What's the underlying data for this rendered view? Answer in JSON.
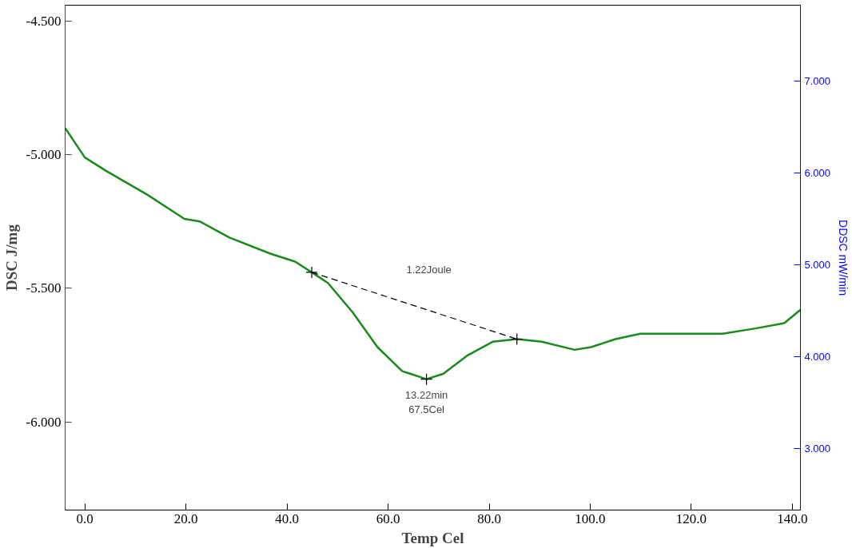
{
  "chart_data": {
    "type": "line",
    "xlabel": "Temp Cel",
    "ylabel": "DSC J/mg",
    "y2label": "DDSC mW/min",
    "xlim": [
      -3.9,
      141.6
    ],
    "ylim": [
      -6.33,
      -4.44
    ],
    "y2lim": [
      2.33,
      7.83
    ],
    "xticks": [
      {
        "value": 0,
        "label": "0.0"
      },
      {
        "value": 20,
        "label": "20.0"
      },
      {
        "value": 40,
        "label": "40.0"
      },
      {
        "value": 60,
        "label": "60.0"
      },
      {
        "value": 80,
        "label": "80.0"
      },
      {
        "value": 100,
        "label": "100.0"
      },
      {
        "value": 120,
        "label": "120.0"
      },
      {
        "value": 140,
        "label": "140.0"
      }
    ],
    "yticks": [
      {
        "value": -4.5,
        "label": "-4.500"
      },
      {
        "value": -5.0,
        "label": "-5.000"
      },
      {
        "value": -5.5,
        "label": "-5.500"
      },
      {
        "value": -6.0,
        "label": "-6.000"
      }
    ],
    "y2ticks": [
      {
        "value": 3,
        "label": "3.000"
      },
      {
        "value": 4,
        "label": "4.000"
      },
      {
        "value": 5,
        "label": "5.000"
      },
      {
        "value": 6,
        "label": "6.000"
      },
      {
        "value": 7,
        "label": "7.000"
      }
    ],
    "grid": false,
    "series": [
      {
        "color": "#1a8a1a",
        "marker": "none",
        "line_style": "solid",
        "x": [
          -3.9,
          0,
          4.2,
          12.4,
          19.7,
          22.8,
          28.6,
          36.7,
          41.6,
          44.9,
          48.1,
          53.0,
          57.9,
          62.8,
          67.6,
          70.9,
          75.8,
          80.7,
          85.5,
          90.4,
          96.9,
          100.2,
          105.0,
          109.9,
          114.8,
          119.7,
          126.2,
          132.7,
          138.4,
          141.6
        ],
        "values": [
          -4.9,
          -5.01,
          -5.06,
          -5.15,
          -5.24,
          -5.25,
          -5.31,
          -5.37,
          -5.4,
          -5.44,
          -5.48,
          -5.59,
          -5.72,
          -5.81,
          -5.84,
          -5.82,
          -5.75,
          -5.7,
          -5.69,
          -5.7,
          -5.73,
          -5.72,
          -5.69,
          -5.67,
          -5.67,
          -5.67,
          -5.67,
          -5.65,
          -5.63,
          -5.58
        ]
      },
      {
        "color": "#000000",
        "marker": "cross",
        "line_style": "dashed",
        "x": [
          44.9,
          85.5
        ],
        "values": [
          -5.44,
          -5.69
        ]
      },
      {
        "type": "scatter",
        "color": "#000000",
        "marker": "cross",
        "x": [
          67.6
        ],
        "values": [
          -5.84
        ]
      }
    ],
    "annotations": [
      "1.22Joule",
      {
        "text": "13.22min\n67.5Cel",
        "x": 67.6,
        "y": -5.84
      }
    ]
  }
}
